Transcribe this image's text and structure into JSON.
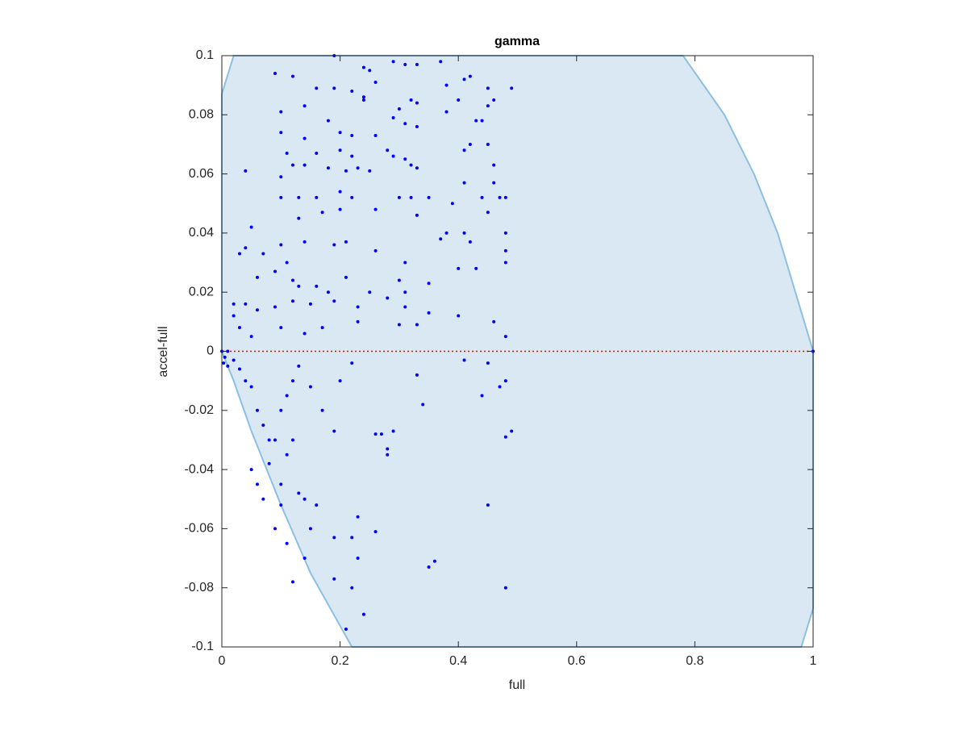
{
  "chart_data": {
    "type": "scatter",
    "title": "gamma",
    "xlabel": "full",
    "ylabel": "accel-full",
    "xlim": [
      0,
      1
    ],
    "ylim": [
      -0.1,
      0.1
    ],
    "xticks": [
      0,
      0.2,
      0.4,
      0.6,
      0.8,
      1
    ],
    "yticks": [
      -0.1,
      -0.08,
      -0.06,
      -0.04,
      -0.02,
      0,
      0.02,
      0.04,
      0.06,
      0.08,
      0.1
    ],
    "hline": 0,
    "hline_color": "#ff0000",
    "region": {
      "color": "#dae8f4",
      "edge_color": "#8cbfe2",
      "x": [
        0,
        0.02,
        0.78,
        0.85,
        0.9,
        0.94,
        0.97,
        1,
        1,
        0.98,
        0.22,
        0.15,
        0.1,
        0.05,
        0.02,
        0
      ],
      "y": [
        0.087,
        0.1,
        0.1,
        0.08,
        0.06,
        0.04,
        0.02,
        0,
        -0.087,
        -0.1,
        -0.1,
        -0.075,
        -0.052,
        -0.027,
        -0.01,
        0
      ]
    },
    "series": [
      {
        "color": "#0000ff",
        "x": [
          0.19,
          0.09,
          0.24,
          0.25,
          0.29,
          0.31,
          0.33,
          0.37,
          0.12,
          0.16,
          0.19,
          0.22,
          0.24,
          0.24,
          0.26,
          0.38,
          0.41,
          0.42,
          0.45,
          0.46,
          0.49,
          0.32,
          0.33,
          0.3,
          0.38,
          0.4,
          0.43,
          0.44,
          0.45,
          0.1,
          0.14,
          0.18,
          0.2,
          0.22,
          0.26,
          0.29,
          0.31,
          0.33,
          0.1,
          0.14,
          0.16,
          0.11,
          0.22,
          0.2,
          0.28,
          0.29,
          0.31,
          0.32,
          0.42,
          0.41,
          0.45,
          0.04,
          0.1,
          0.12,
          0.14,
          0.18,
          0.21,
          0.23,
          0.25,
          0.33,
          0.46,
          0.41,
          0.46,
          0.1,
          0.13,
          0.16,
          0.2,
          0.22,
          0.3,
          0.32,
          0.35,
          0.39,
          0.44,
          0.45,
          0.47,
          0.48,
          0.05,
          0.13,
          0.17,
          0.2,
          0.26,
          0.33,
          0.37,
          0.38,
          0.41,
          0.42,
          0.48,
          0.03,
          0.04,
          0.07,
          0.1,
          0.14,
          0.19,
          0.21,
          0.26,
          0.31,
          0.4,
          0.43,
          0.48,
          0.48,
          0.06,
          0.09,
          0.11,
          0.12,
          0.13,
          0.16,
          0.18,
          0.21,
          0.25,
          0.3,
          0.31,
          0.35,
          0.02,
          0.04,
          0.06,
          0.09,
          0.12,
          0.15,
          0.19,
          0.23,
          0.28,
          0.31,
          0.33,
          0.35,
          0.4,
          0.46,
          0.02,
          0.03,
          0.05,
          0.1,
          0.14,
          0.17,
          0.23,
          0.3,
          0.48,
          0.01,
          0.005,
          0.003,
          0.01,
          0.02,
          0.03,
          0.04,
          0.05,
          0.06,
          0.07,
          0.08,
          0.09,
          0.1,
          0.11,
          0.12,
          0.13,
          0.15,
          0.17,
          0.19,
          0.2,
          0.22,
          0.05,
          0.06,
          0.07,
          0.08,
          0.1,
          0.11,
          0.12,
          0.13,
          0.14,
          0.15,
          0.16,
          0.09,
          0.1,
          0.11,
          0.12,
          0.14,
          0.19,
          0.19,
          0.23,
          0.22,
          0.22,
          0.23,
          0.24,
          0.26,
          0.26,
          0.27,
          0.28,
          0.28,
          0.29,
          0.33,
          0.34,
          0.21,
          0.35,
          0.36,
          0.41,
          0.44,
          0.45,
          0.45,
          0.47,
          0.48,
          0.48,
          0.49,
          0.48,
          0,
          1
        ],
        "y": [
          0.1,
          0.094,
          0.096,
          0.095,
          0.098,
          0.097,
          0.097,
          0.098,
          0.093,
          0.089,
          0.089,
          0.088,
          0.086,
          0.085,
          0.091,
          0.09,
          0.092,
          0.093,
          0.089,
          0.085,
          0.089,
          0.085,
          0.084,
          0.082,
          0.081,
          0.085,
          0.078,
          0.078,
          0.083,
          0.081,
          0.083,
          0.078,
          0.074,
          0.073,
          0.073,
          0.079,
          0.077,
          0.076,
          0.074,
          0.072,
          0.067,
          0.067,
          0.066,
          0.068,
          0.068,
          0.066,
          0.065,
          0.063,
          0.07,
          0.068,
          0.07,
          0.061,
          0.059,
          0.063,
          0.063,
          0.062,
          0.061,
          0.062,
          0.061,
          0.062,
          0.063,
          0.057,
          0.057,
          0.052,
          0.052,
          0.052,
          0.054,
          0.052,
          0.052,
          0.052,
          0.052,
          0.05,
          0.052,
          0.047,
          0.052,
          0.052,
          0.042,
          0.045,
          0.047,
          0.048,
          0.048,
          0.046,
          0.038,
          0.04,
          0.04,
          0.037,
          0.04,
          0.033,
          0.035,
          0.033,
          0.036,
          0.037,
          0.036,
          0.037,
          0.034,
          0.03,
          0.028,
          0.028,
          0.034,
          0.03,
          0.025,
          0.027,
          0.03,
          0.024,
          0.022,
          0.022,
          0.02,
          0.025,
          0.02,
          0.024,
          0.02,
          0.023,
          0.016,
          0.016,
          0.014,
          0.015,
          0.017,
          0.016,
          0.017,
          0.015,
          0.018,
          0.015,
          0.009,
          0.013,
          0.012,
          0.01,
          0.012,
          0.008,
          0.005,
          0.008,
          0.006,
          0.008,
          0.01,
          0.009,
          0.005,
          0,
          -0.002,
          -0.004,
          -0.005,
          -0.003,
          -0.006,
          -0.01,
          -0.012,
          -0.02,
          -0.025,
          -0.03,
          -0.03,
          -0.02,
          -0.015,
          -0.01,
          -0.005,
          -0.012,
          -0.02,
          -0.027,
          -0.01,
          -0.004,
          -0.04,
          -0.045,
          -0.05,
          -0.038,
          -0.045,
          -0.035,
          -0.03,
          -0.048,
          -0.05,
          -0.06,
          -0.052,
          -0.06,
          -0.052,
          -0.065,
          -0.078,
          -0.07,
          -0.077,
          -0.063,
          -0.056,
          -0.063,
          -0.08,
          -0.07,
          -0.089,
          -0.061,
          -0.028,
          -0.028,
          -0.035,
          -0.033,
          -0.027,
          -0.008,
          -0.018,
          -0.094,
          -0.073,
          -0.071,
          -0.003,
          -0.015,
          -0.052,
          -0.004,
          -0.012,
          -0.01,
          -0.029,
          -0.027,
          -0.08,
          0,
          0
        ]
      }
    ]
  }
}
